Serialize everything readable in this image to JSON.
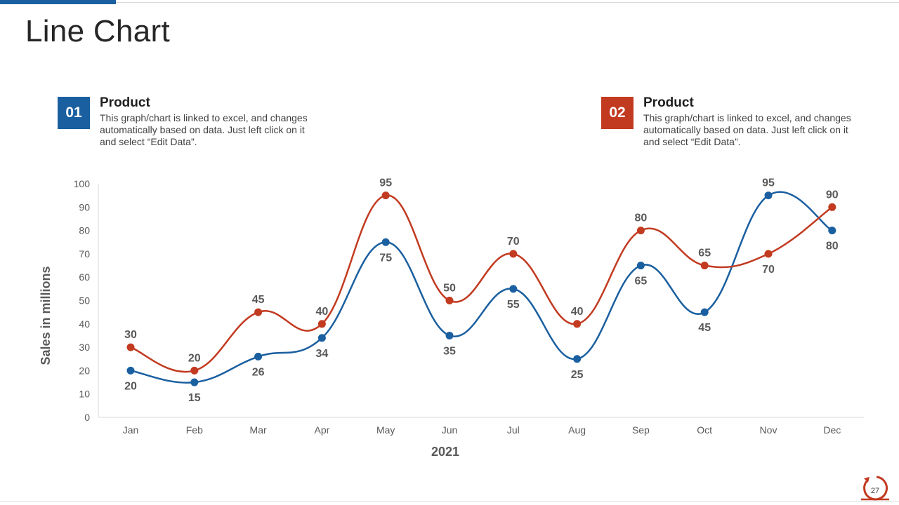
{
  "slide": {
    "title": "Line Chart",
    "page_number": "27"
  },
  "legend": [
    {
      "number": "01",
      "title": "Product",
      "description": "This graph/chart is linked to excel, and changes automatically based on data. Just left click on it and select “Edit Data”.",
      "color": "#1a5fa0"
    },
    {
      "number": "02",
      "title": "Product",
      "description": "This graph/chart is linked to excel, and changes automatically based on data. Just left click on it and select “Edit Data”.",
      "color": "#c23a20"
    }
  ],
  "chart_data": {
    "type": "line",
    "title": "",
    "xlabel": "2021",
    "ylabel": "Sales in millions",
    "categories": [
      "Jan",
      "Feb",
      "Mar",
      "Apr",
      "May",
      "Jun",
      "Jul",
      "Aug",
      "Sep",
      "Oct",
      "Nov",
      "Dec"
    ],
    "ylim": [
      0,
      100
    ],
    "yticks": [
      0,
      10,
      20,
      30,
      40,
      50,
      60,
      70,
      80,
      90,
      100
    ],
    "grid": false,
    "smooth": true,
    "series": [
      {
        "name": "Product 01",
        "color": "#1a5fa0",
        "values": [
          20,
          15,
          26,
          34,
          75,
          35,
          55,
          25,
          65,
          45,
          95,
          80
        ]
      },
      {
        "name": "Product 02",
        "color": "#c23a20",
        "values": [
          30,
          20,
          45,
          40,
          95,
          50,
          70,
          40,
          80,
          65,
          70,
          90
        ]
      }
    ]
  }
}
